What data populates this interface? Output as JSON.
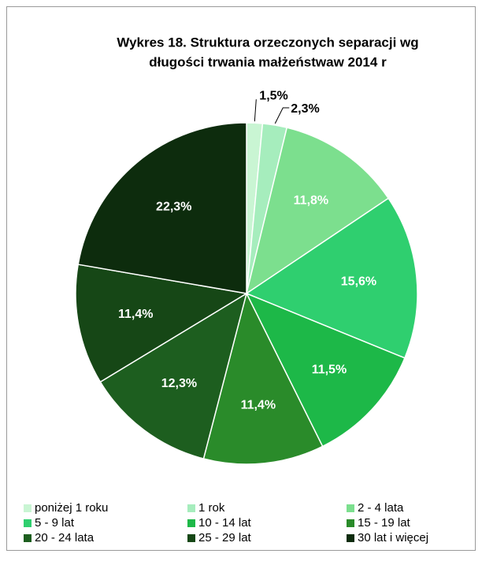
{
  "chart_data": {
    "type": "pie",
    "title": [
      "Wykres 18. Struktura orzeczonych separacji wg",
      "długości trwania małżeństwaw 2014 r"
    ],
    "categories": [
      "poniżej 1 roku",
      "1 rok",
      "2 - 4 lata",
      "5 - 9 lat",
      "10 - 14 lat",
      "15 - 19 lat",
      "20 - 24 lata",
      "25 - 29 lat",
      "30 lat i więcej"
    ],
    "values": [
      1.5,
      2.3,
      11.8,
      15.6,
      11.5,
      11.4,
      12.3,
      11.4,
      22.3
    ],
    "value_labels": [
      "1,5%",
      "2,3%",
      "11,8%",
      "15,6%",
      "11,5%",
      "11,4%",
      "12,3%",
      "11,4%",
      "22,3%"
    ],
    "colors": [
      "#c9f5d3",
      "#a6edbd",
      "#7cdf8e",
      "#2fcf6f",
      "#1db848",
      "#2a8b2a",
      "#1d5e1f",
      "#164716",
      "#0d2c0d"
    ],
    "legend": "bottom"
  }
}
